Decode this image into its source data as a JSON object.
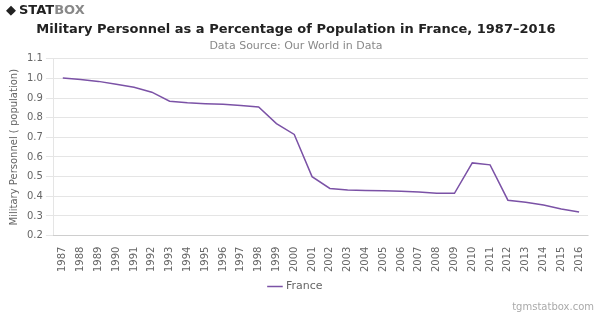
{
  "chart_data": {
    "type": "line",
    "title": "Military Personnel as a Percentage of Population in France, 1987–2016",
    "subtitle": "Data Source: Our World in Data",
    "y_label": "Military Personnel ( population)",
    "x": [
      1987,
      1988,
      1989,
      1990,
      1991,
      1992,
      1993,
      1994,
      1995,
      1996,
      1997,
      1998,
      1999,
      2000,
      2001,
      2002,
      2003,
      2004,
      2005,
      2006,
      2007,
      2008,
      2009,
      2010,
      2011,
      2012,
      2013,
      2014,
      2015,
      2016
    ],
    "series": [
      {
        "name": "France",
        "color": "#7b52a6",
        "values": [
          1.002,
          0.995,
          0.985,
          0.97,
          0.955,
          0.93,
          0.884,
          0.876,
          0.871,
          0.868,
          0.862,
          0.855,
          0.77,
          0.715,
          0.5,
          0.44,
          0.432,
          0.43,
          0.428,
          0.425,
          0.422,
          0.415,
          0.415,
          0.57,
          0.56,
          0.38,
          0.37,
          0.355,
          0.335,
          0.32
        ]
      }
    ],
    "xlim": [
      1986.5,
      2016.5
    ],
    "xticks": [
      1987,
      1988,
      1989,
      1990,
      1991,
      1992,
      1993,
      1994,
      1995,
      1996,
      1997,
      1998,
      1999,
      2000,
      2001,
      2002,
      2003,
      2004,
      2005,
      2006,
      2007,
      2008,
      2009,
      2010,
      2011,
      2012,
      2013,
      2014,
      2015,
      2016
    ],
    "ylim": [
      0.2,
      1.1
    ],
    "yticks": [
      0.2,
      0.3,
      0.4,
      0.5,
      0.6,
      0.7,
      0.8,
      0.9,
      {
        "value": 1.0,
        "label": "1.0"
      },
      1.1
    ],
    "grid": "y",
    "legend": "bottom",
    "annotations": [
      "◆",
      "STAT",
      "BOX",
      "tgmstatbox.com"
    ]
  }
}
